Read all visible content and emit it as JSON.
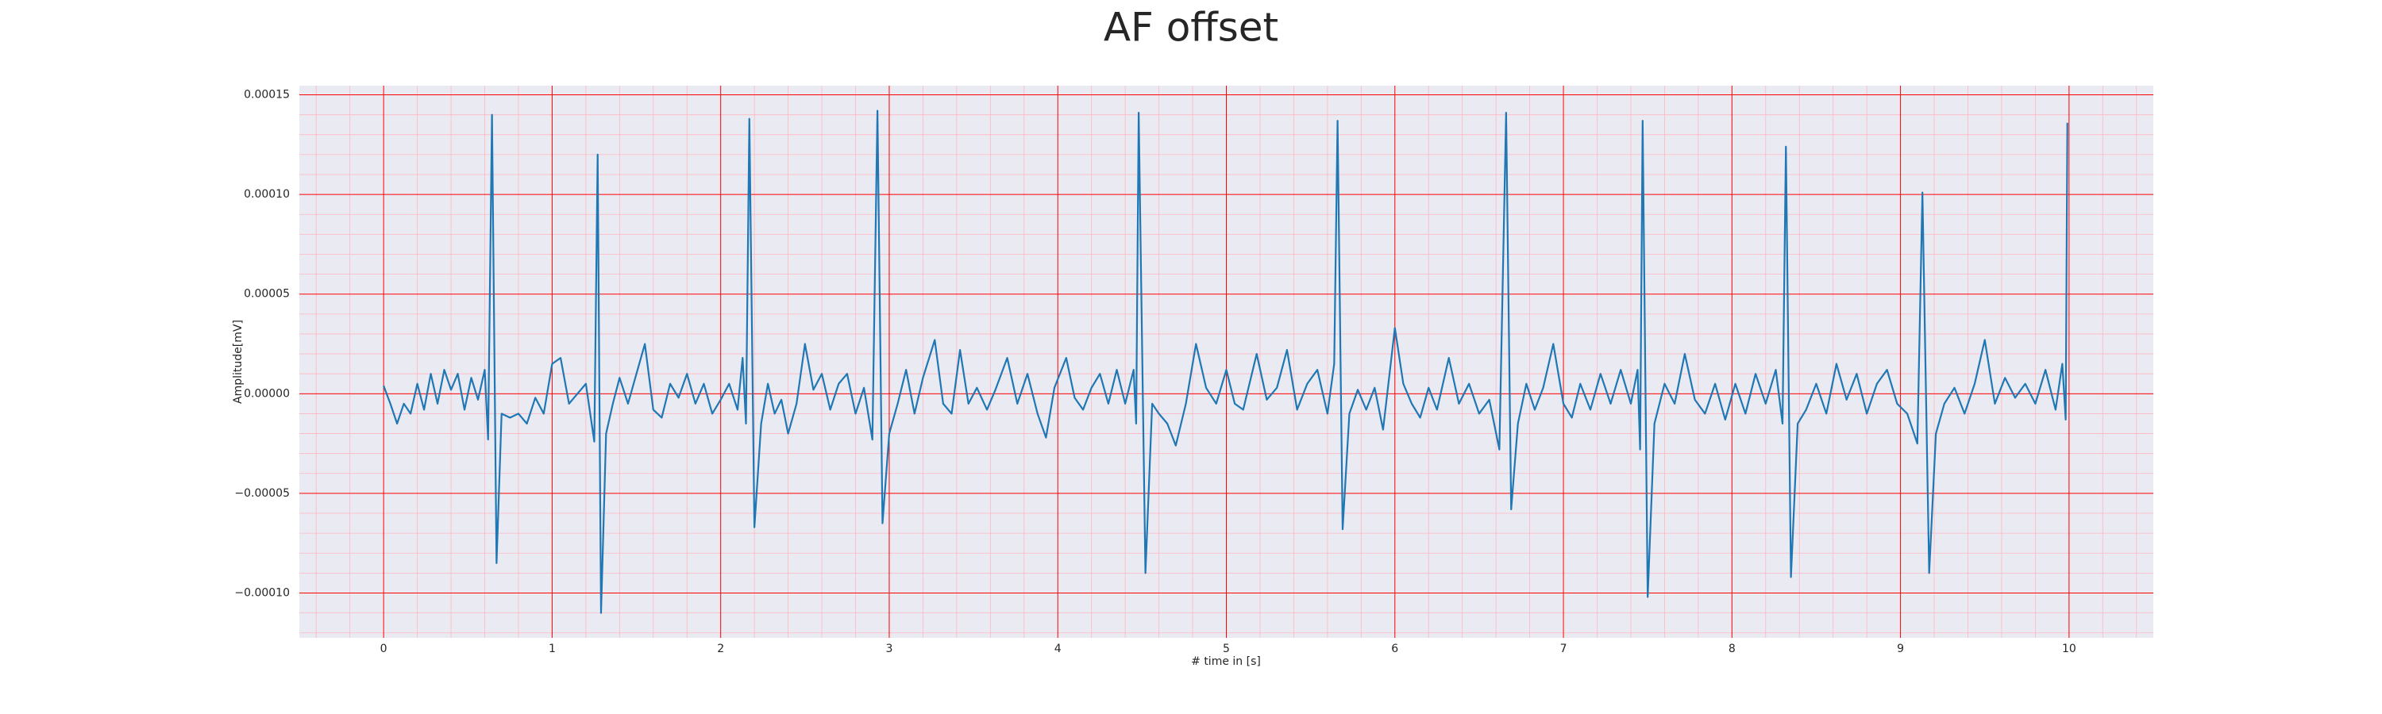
{
  "chart_data": {
    "type": "line",
    "title": "AF offset",
    "xlabel": "# time in [s]",
    "ylabel": "Amplitude[mV]",
    "xlim": [
      -0.5,
      10.5
    ],
    "ylim": [
      -0.0001225,
      0.0001546
    ],
    "xticks": [
      0,
      1,
      2,
      3,
      4,
      5,
      6,
      7,
      8,
      9,
      10
    ],
    "yticks": [
      {
        "value": -0.0001,
        "label": "−0.00010"
      },
      {
        "value": -5e-05,
        "label": "−0.00005"
      },
      {
        "value": 0,
        "label": "0.00000"
      },
      {
        "value": 5e-05,
        "label": "0.00005"
      },
      {
        "value": 0.0001,
        "label": "0.00010"
      },
      {
        "value": 0.00015,
        "label": "0.00015"
      }
    ],
    "grid": true,
    "grid_color": "#ff0000",
    "minor_grid_color": "#ffb6c1",
    "minor_divisions": 5,
    "background": "#eaeaf2",
    "series": [
      {
        "color": "#1f77b4",
        "x": [
          0,
          0.04,
          0.08,
          0.12,
          0.16,
          0.2,
          0.24,
          0.28,
          0.32,
          0.36,
          0.4,
          0.44,
          0.48,
          0.52,
          0.56,
          0.6,
          0.62,
          0.643,
          0.67,
          0.7,
          0.75,
          0.8,
          0.85,
          0.9,
          0.95,
          1.0,
          1.05,
          1.1,
          1.15,
          1.2,
          1.25,
          1.27,
          1.29,
          1.32,
          1.36,
          1.4,
          1.45,
          1.5,
          1.55,
          1.6,
          1.65,
          1.7,
          1.75,
          1.8,
          1.85,
          1.9,
          1.95,
          2.0,
          2.05,
          2.1,
          2.13,
          2.15,
          2.17,
          2.2,
          2.24,
          2.28,
          2.32,
          2.36,
          2.4,
          2.45,
          2.5,
          2.55,
          2.6,
          2.65,
          2.7,
          2.75,
          2.8,
          2.85,
          2.9,
          2.93,
          2.96,
          3.0,
          3.05,
          3.1,
          3.15,
          3.2,
          3.27,
          3.32,
          3.37,
          3.42,
          3.47,
          3.52,
          3.58,
          3.63,
          3.7,
          3.76,
          3.82,
          3.88,
          3.93,
          3.98,
          4.05,
          4.1,
          4.15,
          4.2,
          4.25,
          4.3,
          4.35,
          4.4,
          4.45,
          4.465,
          4.48,
          4.52,
          4.56,
          4.6,
          4.65,
          4.7,
          4.76,
          4.82,
          4.88,
          4.94,
          5.0,
          5.05,
          5.1,
          5.18,
          5.24,
          5.3,
          5.36,
          5.42,
          5.48,
          5.54,
          5.6,
          5.64,
          5.66,
          5.69,
          5.73,
          5.78,
          5.83,
          5.88,
          5.93,
          6.0,
          6.05,
          6.1,
          6.15,
          6.2,
          6.25,
          6.32,
          6.38,
          6.44,
          6.5,
          6.56,
          6.62,
          6.66,
          6.69,
          6.73,
          6.78,
          6.83,
          6.88,
          6.94,
          7.0,
          7.05,
          7.1,
          7.16,
          7.22,
          7.28,
          7.34,
          7.4,
          7.44,
          7.455,
          7.47,
          7.5,
          7.54,
          7.6,
          7.66,
          7.72,
          7.78,
          7.84,
          7.9,
          7.96,
          8.02,
          8.08,
          8.14,
          8.2,
          8.26,
          8.3,
          8.32,
          8.35,
          8.39,
          8.44,
          8.5,
          8.56,
          8.62,
          8.68,
          8.74,
          8.8,
          8.86,
          8.92,
          8.98,
          9.04,
          9.1,
          9.13,
          9.17,
          9.21,
          9.26,
          9.32,
          9.38,
          9.44,
          9.5,
          9.56,
          9.62,
          9.68,
          9.74,
          9.8,
          9.86,
          9.92,
          9.96,
          9.98,
          9.99
        ],
        "values": [
          4e-06,
          -5e-06,
          -1.5e-05,
          -5e-06,
          -1e-05,
          5e-06,
          -8e-06,
          1e-05,
          -5e-06,
          1.2e-05,
          2e-06,
          1e-05,
          -8e-06,
          8e-06,
          -3e-06,
          1.2e-05,
          -2.3e-05,
          0.00014,
          -8.5e-05,
          -1e-05,
          -1.2e-05,
          -1e-05,
          -1.5e-05,
          -2e-06,
          -1e-05,
          1.5e-05,
          1.8e-05,
          -5e-06,
          0,
          5e-06,
          -2.4e-05,
          0.00012,
          -0.00011,
          -2e-05,
          -5e-06,
          8e-06,
          -5e-06,
          1e-05,
          2.5e-05,
          -8e-06,
          -1.2e-05,
          5e-06,
          -2e-06,
          1e-05,
          -5e-06,
          5e-06,
          -1e-05,
          -3e-06,
          5e-06,
          -8e-06,
          1.8e-05,
          -1.5e-05,
          0.000138,
          -6.7e-05,
          -1.5e-05,
          5e-06,
          -1e-05,
          -3e-06,
          -2e-05,
          -5e-06,
          2.5e-05,
          2e-06,
          1e-05,
          -8e-06,
          5e-06,
          1e-05,
          -1e-05,
          3e-06,
          -2.3e-05,
          0.000142,
          -6.5e-05,
          -2e-05,
          -5e-06,
          1.2e-05,
          -1e-05,
          8e-06,
          2.7e-05,
          -5e-06,
          -1e-05,
          2.2e-05,
          -5e-06,
          3e-06,
          -8e-06,
          2e-06,
          1.8e-05,
          -5e-06,
          1e-05,
          -1e-05,
          -2.2e-05,
          3e-06,
          1.8e-05,
          -2e-06,
          -8e-06,
          3e-06,
          1e-05,
          -5e-06,
          1.2e-05,
          -5e-06,
          1.2e-05,
          -1.5e-05,
          0.000141,
          -9e-05,
          -5e-06,
          -1e-05,
          -1.5e-05,
          -2.6e-05,
          -5e-06,
          2.5e-05,
          3e-06,
          -5e-06,
          1.2e-05,
          -5e-06,
          -8e-06,
          2e-05,
          -3e-06,
          3e-06,
          2.2e-05,
          -8e-06,
          5e-06,
          1.2e-05,
          -1e-05,
          1.5e-05,
          0.000137,
          -6.8e-05,
          -1e-05,
          2e-06,
          -8e-06,
          3e-06,
          -1.8e-05,
          3.3e-05,
          5e-06,
          -5e-06,
          -1.2e-05,
          3e-06,
          -8e-06,
          1.8e-05,
          -5e-06,
          5e-06,
          -1e-05,
          -3e-06,
          -2.8e-05,
          0.000141,
          -5.8e-05,
          -1.5e-05,
          5e-06,
          -8e-06,
          3e-06,
          2.5e-05,
          -5e-06,
          -1.2e-05,
          5e-06,
          -8e-06,
          1e-05,
          -5e-06,
          1.2e-05,
          -5e-06,
          1.2e-05,
          -2.8e-05,
          0.000137,
          -0.000102,
          -1.5e-05,
          5e-06,
          -5e-06,
          2e-05,
          -3e-06,
          -1e-05,
          5e-06,
          -1.3e-05,
          5e-06,
          -1e-05,
          1e-05,
          -5e-06,
          1.2e-05,
          -1.5e-05,
          0.000124,
          -9.2e-05,
          -1.5e-05,
          -8e-06,
          5e-06,
          -1e-05,
          1.5e-05,
          -3e-06,
          1e-05,
          -1e-05,
          5e-06,
          1.2e-05,
          -5e-06,
          -1e-05,
          -2.5e-05,
          0.000101,
          -9e-05,
          -2e-05,
          -5e-06,
          3e-06,
          -1e-05,
          5e-06,
          2.7e-05,
          -5e-06,
          8e-06,
          -2e-06,
          5e-06,
          -5e-06,
          1.2e-05,
          -8e-06,
          1.5e-05,
          -1.3e-05,
          0.000136
        ]
      }
    ]
  }
}
